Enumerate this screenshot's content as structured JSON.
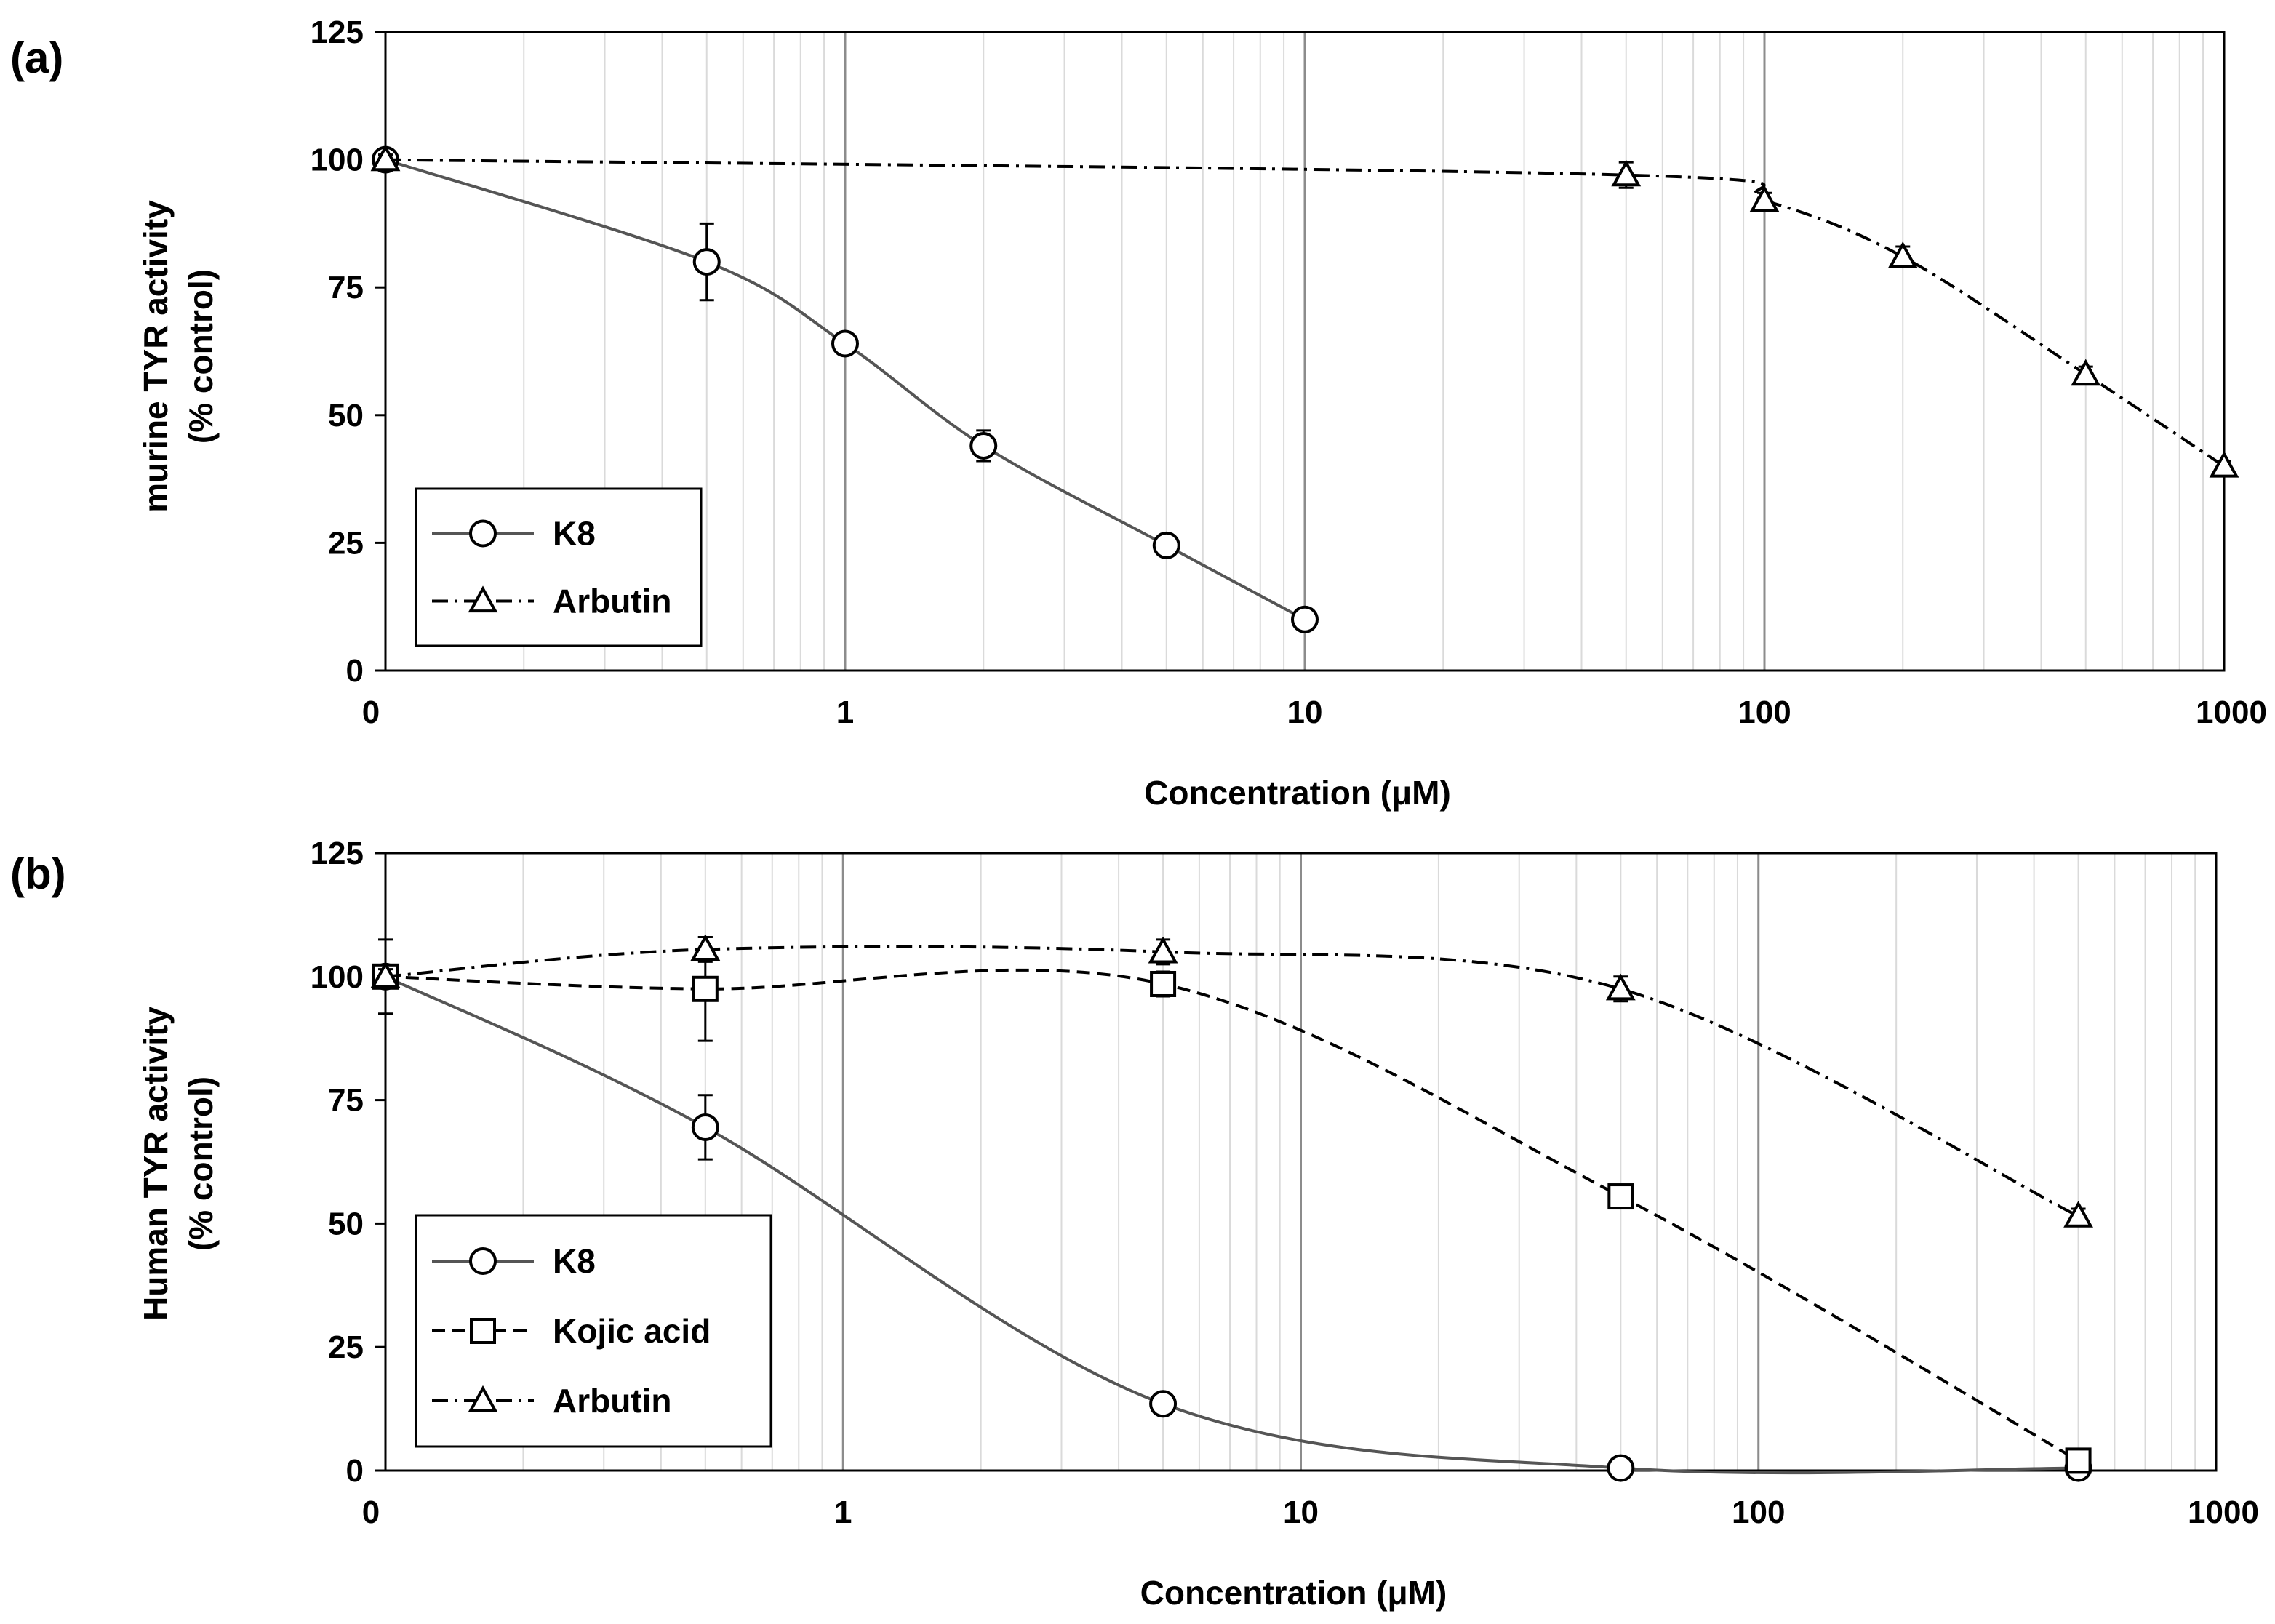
{
  "chart_data": [
    {
      "type": "line",
      "panel_label": "(a)",
      "xscale": "log",
      "xlim": [
        0.1,
        1000
      ],
      "ylim": [
        0,
        125
      ],
      "xlabel": "Concentration (μM)",
      "ylabel_lines": [
        "murine TYR activity",
        "(% control)"
      ],
      "xtick_labels": [
        "0",
        "1",
        "10",
        "100",
        "1000"
      ],
      "ytick_labels": [
        "0",
        "25",
        "50",
        "75",
        "100",
        "125"
      ],
      "grid": true,
      "legend_position": "bottom-left",
      "series": [
        {
          "name": "K8",
          "marker": "circle",
          "line": "solid",
          "x": [
            0.1,
            0.5,
            1,
            2,
            5,
            10
          ],
          "y": [
            100,
            80,
            64,
            44,
            24.5,
            10
          ],
          "err": [
            1,
            7.5,
            1.5,
            3,
            1.5,
            2
          ]
        },
        {
          "name": "Arbutin",
          "marker": "triangle",
          "line": "dashdot",
          "x": [
            0.1,
            50,
            100,
            200,
            500,
            1000
          ],
          "y": [
            100,
            97,
            92,
            81,
            58,
            40
          ],
          "err": [
            1,
            2.5,
            1.5,
            2,
            1.5,
            1
          ]
        }
      ]
    },
    {
      "type": "line",
      "panel_label": "(b)",
      "xscale": "log",
      "xlim": [
        0.1,
        1000
      ],
      "ylim": [
        0,
        125
      ],
      "xlabel": "Concentration (μM)",
      "ylabel_lines": [
        "Human TYR activity",
        "(% control)"
      ],
      "xtick_labels": [
        "0",
        "1",
        "10",
        "100",
        "1000"
      ],
      "ytick_labels": [
        "0",
        "25",
        "50",
        "75",
        "100",
        "125"
      ],
      "grid": true,
      "legend_position": "bottom-left",
      "series": [
        {
          "name": "K8",
          "marker": "circle",
          "line": "solid",
          "x": [
            0.1,
            0.5,
            5,
            50,
            500
          ],
          "y": [
            100,
            69.5,
            13.5,
            0.5,
            0.5
          ],
          "err": [
            1.5,
            6.5,
            2,
            0.5,
            0.5
          ]
        },
        {
          "name": "Kojic acid",
          "marker": "square",
          "line": "dashed",
          "x": [
            0.1,
            0.5,
            5,
            50,
            500
          ],
          "y": [
            100,
            97.5,
            98.5,
            55.5,
            2
          ],
          "err": [
            7.5,
            10.5,
            2.5,
            1.5,
            1
          ]
        },
        {
          "name": "Arbutin",
          "marker": "triangle",
          "line": "dashdot",
          "x": [
            0.1,
            0.5,
            5,
            50,
            500
          ],
          "y": [
            100,
            105.5,
            105,
            97.5,
            51.5
          ],
          "err": [
            1.5,
            2.5,
            2.5,
            2.5,
            1.5
          ]
        }
      ]
    }
  ]
}
